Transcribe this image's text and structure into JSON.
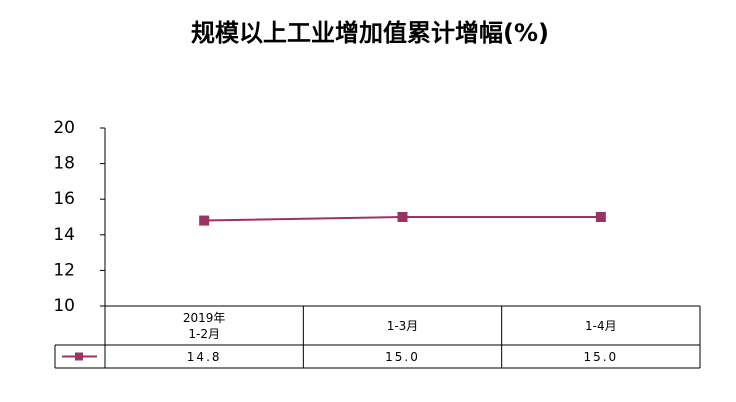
{
  "chart_data": {
    "type": "line",
    "title": "规模以上工业增加值累计增幅(%)",
    "categories": [
      "2019年\n1-2月",
      "1-3月",
      "1-4月"
    ],
    "values": [
      14.8,
      15.0,
      15.0
    ],
    "value_labels": [
      "14.8",
      "15.0",
      "15.0"
    ],
    "color": "#993366",
    "ylim": [
      10,
      20
    ],
    "yticks": [
      10,
      12,
      14,
      16,
      18,
      20
    ],
    "grid": false
  }
}
